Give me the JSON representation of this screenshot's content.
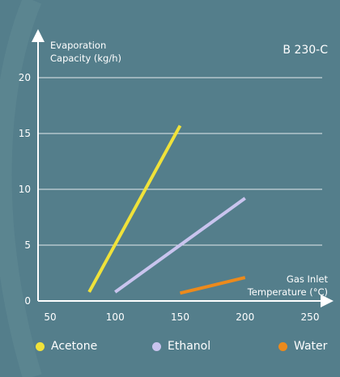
{
  "chart_data": {
    "type": "line",
    "model_label": "B 230-C",
    "ylabel_line1": "Evaporation",
    "ylabel_line2": "Capacity (kg/h)",
    "xlabel_line1": "Gas Inlet",
    "xlabel_line2": "Temperature (°C)",
    "xlim": [
      50,
      250
    ],
    "ylim": [
      0,
      20
    ],
    "x_ticks": [
      "50",
      "100",
      "150",
      "200",
      "250"
    ],
    "y_ticks": [
      "0",
      "5",
      "10",
      "15",
      "20"
    ],
    "grid": true,
    "legend_position": "bottom",
    "series": [
      {
        "name": "Acetone",
        "color": "#f0e23a",
        "points": [
          [
            80,
            0.8
          ],
          [
            150,
            15.7
          ]
        ]
      },
      {
        "name": "Ethanol",
        "color": "#c9c4ee",
        "points": [
          [
            100,
            0.8
          ],
          [
            200,
            9.2
          ]
        ]
      },
      {
        "name": "Water",
        "color": "#ec8a1c",
        "points": [
          [
            150,
            0.7
          ],
          [
            200,
            2.1
          ]
        ]
      }
    ]
  }
}
